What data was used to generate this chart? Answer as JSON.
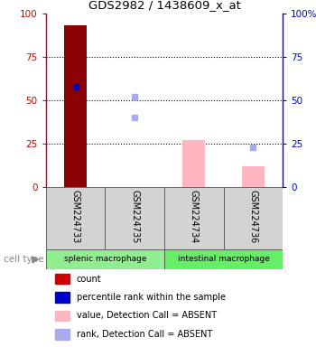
{
  "title": "GDS2982 / 1438609_x_at",
  "samples": [
    "GSM224733",
    "GSM224735",
    "GSM224734",
    "GSM224736"
  ],
  "groups": [
    {
      "name": "splenic macrophage",
      "color": "#90EE90",
      "samples_idx": [
        0,
        1
      ]
    },
    {
      "name": "intestinal macrophage",
      "color": "#66EE66",
      "samples_idx": [
        2,
        3
      ]
    }
  ],
  "bar_values": [
    93,
    null,
    27,
    12
  ],
  "bar_colors": [
    "#8B0000",
    null,
    "#FFB6C1",
    "#FFB6C1"
  ],
  "rank_markers": [
    58,
    52,
    null,
    23
  ],
  "rank_marker_colors": [
    "#0000CD",
    "#AAAAEE",
    null,
    "#AAAAEE"
  ],
  "absent_rank_values": [
    null,
    40,
    null,
    null
  ],
  "absent_rank_colors": [
    null,
    "#AAAAEE",
    null,
    null
  ],
  "ylim": [
    0,
    100
  ],
  "yticks": [
    0,
    25,
    50,
    75,
    100
  ],
  "left_axis_color": "#CC0000",
  "right_axis_color": "#0000CC",
  "bg_color": "#FFFFFF",
  "legend_labels": [
    "count",
    "percentile rank within the sample",
    "value, Detection Call = ABSENT",
    "rank, Detection Call = ABSENT"
  ],
  "legend_colors": [
    "#CC0000",
    "#0000CD",
    "#FFB6C1",
    "#AAAAEE"
  ]
}
